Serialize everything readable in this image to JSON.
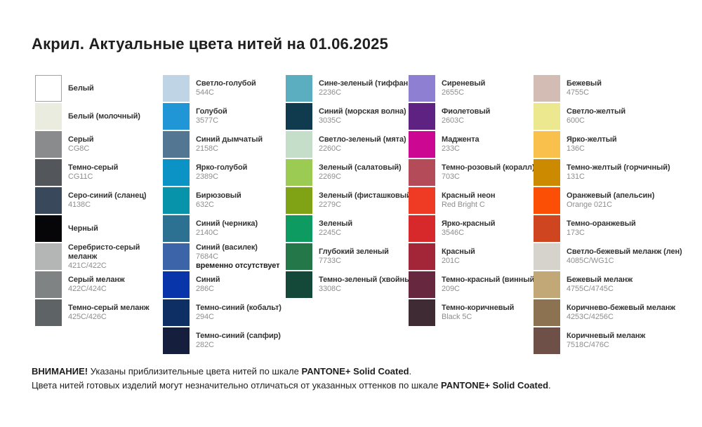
{
  "title": "Акрил. Актуальные цвета нитей на 01.06.2025",
  "columns": [
    {
      "items": [
        {
          "name": "Белый",
          "code": "",
          "color": "#FFFFFF",
          "border": true
        },
        {
          "name": "Белый (молочный)",
          "code": "",
          "color": "#EBECE0"
        },
        {
          "name": "Серый",
          "code": "CG8C",
          "color": "#898B8D"
        },
        {
          "name": "Темно-серый",
          "code": "CG11C",
          "color": "#53565A"
        },
        {
          "name": "Серо-синий (сланец)",
          "code": "4138C",
          "color": "#39485A"
        },
        {
          "name": "Черный",
          "code": "",
          "color": "#060608"
        },
        {
          "name": "Серебристо-серый меланж",
          "code": "421C/422C",
          "color": "#B4B6B5"
        },
        {
          "name": "Серый меланж",
          "code": "422C/424C",
          "color": "#808384"
        },
        {
          "name": "Темно-серый меланж",
          "code": "425C/426C",
          "color": "#5E6365"
        }
      ]
    },
    {
      "items": [
        {
          "name": "Светло-голубой",
          "code": "544C",
          "color": "#BFD4E5"
        },
        {
          "name": "Голубой",
          "code": "3577C",
          "color": "#2196D6"
        },
        {
          "name": "Синий дымчатый",
          "code": "2158C",
          "color": "#537793"
        },
        {
          "name": "Ярко-голубой",
          "code": "2389C",
          "color": "#0A93C4"
        },
        {
          "name": "Бирюзовый",
          "code": "632C",
          "color": "#0793A9"
        },
        {
          "name": "Синий (черника)",
          "code": "2140C",
          "color": "#2C7092"
        },
        {
          "name": "Синий (василек)",
          "code": "7684C",
          "color": "#3C64A9",
          "note": "временно отсутствует"
        },
        {
          "name": "Синий",
          "code": "286C",
          "color": "#0935AB"
        },
        {
          "name": "Темно-синий (кобальт)",
          "code": "294C",
          "color": "#0D2F64"
        },
        {
          "name": "Темно-синий (сапфир)",
          "code": "282C",
          "color": "#151F3D"
        }
      ]
    },
    {
      "items": [
        {
          "name": "Сине-зеленый (тиффани)",
          "code": "2236C",
          "color": "#5BAEC0"
        },
        {
          "name": "Синий (морская волна)",
          "code": "3035C",
          "color": "#103A4D"
        },
        {
          "name": "Светло-зеленый (мята)",
          "code": "2260C",
          "color": "#C5DECA"
        },
        {
          "name": "Зеленый (салатовый)",
          "code": "2269C",
          "color": "#9CCB53"
        },
        {
          "name": "Зеленый (фисташковый)",
          "code": "2279C",
          "color": "#7FA314"
        },
        {
          "name": "Зеленый",
          "code": "2245C",
          "color": "#0E9B62"
        },
        {
          "name": "Глубокий зеленый",
          "code": "7733C",
          "color": "#247749"
        },
        {
          "name": "Темно-зеленый (хвойный)",
          "code": "3308C",
          "color": "#14493A"
        }
      ]
    },
    {
      "items": [
        {
          "name": "Сиреневый",
          "code": "2655C",
          "color": "#8F7FD3"
        },
        {
          "name": "Фиолетовый",
          "code": "2603C",
          "color": "#5E2282"
        },
        {
          "name": "Маджента",
          "code": "233C",
          "color": "#CC0791"
        },
        {
          "name": "Темно-розовый (коралл)",
          "code": "703C",
          "color": "#B44B58"
        },
        {
          "name": "Красный неон",
          "code": "Red Bright C",
          "color": "#F03B24"
        },
        {
          "name": "Ярко-красный",
          "code": "3546C",
          "color": "#D7282C"
        },
        {
          "name": "Красный",
          "code": "201C",
          "color": "#A32638"
        },
        {
          "name": "Темно-красный (винный)",
          "code": "209C",
          "color": "#66273F"
        },
        {
          "name": "Темно-коричневый",
          "code": "Black 5C",
          "color": "#3F2B33"
        }
      ]
    },
    {
      "items": [
        {
          "name": "Бежевый",
          "code": "4755C",
          "color": "#D2BCB3"
        },
        {
          "name": "Светло-желтый",
          "code": "600C",
          "color": "#EBE88F"
        },
        {
          "name": "Ярко-желтый",
          "code": "136C",
          "color": "#FAC04C"
        },
        {
          "name": "Темно-желтый (горчичный)",
          "code": "131C",
          "color": "#CC8A00"
        },
        {
          "name": "Оранжевый (апельсин)",
          "code": "Orange 021C",
          "color": "#FC4F06"
        },
        {
          "name": "Темно-оранжевый",
          "code": "173C",
          "color": "#CF4520"
        },
        {
          "name": "Светло-бежевый меланж (лен)",
          "code": "4085C/WG1C",
          "color": "#D6D3CC"
        },
        {
          "name": "Бежевый меланж",
          "code": "4755C/4745C",
          "color": "#C2A877"
        },
        {
          "name": "Коричнево-бежевый меланж",
          "code": "4253C/4256C",
          "color": "#8C7250"
        },
        {
          "name": "Коричневый меланж",
          "code": "7518C/476C",
          "color": "#6E5049"
        }
      ]
    }
  ],
  "footer": {
    "line1": {
      "bold1": "ВНИМАНИЕ!",
      "text1": " Указаны приблизительные цвета нитей по шкале ",
      "bold2": "PANTONE+ Solid Coated",
      "text2": "."
    },
    "line2": {
      "text1": "Цвета нитей готовых изделий могут незначительно отличаться от указанных оттенков по шкале ",
      "bold1": "PANTONE+ Solid Coated",
      "text2": "."
    }
  }
}
